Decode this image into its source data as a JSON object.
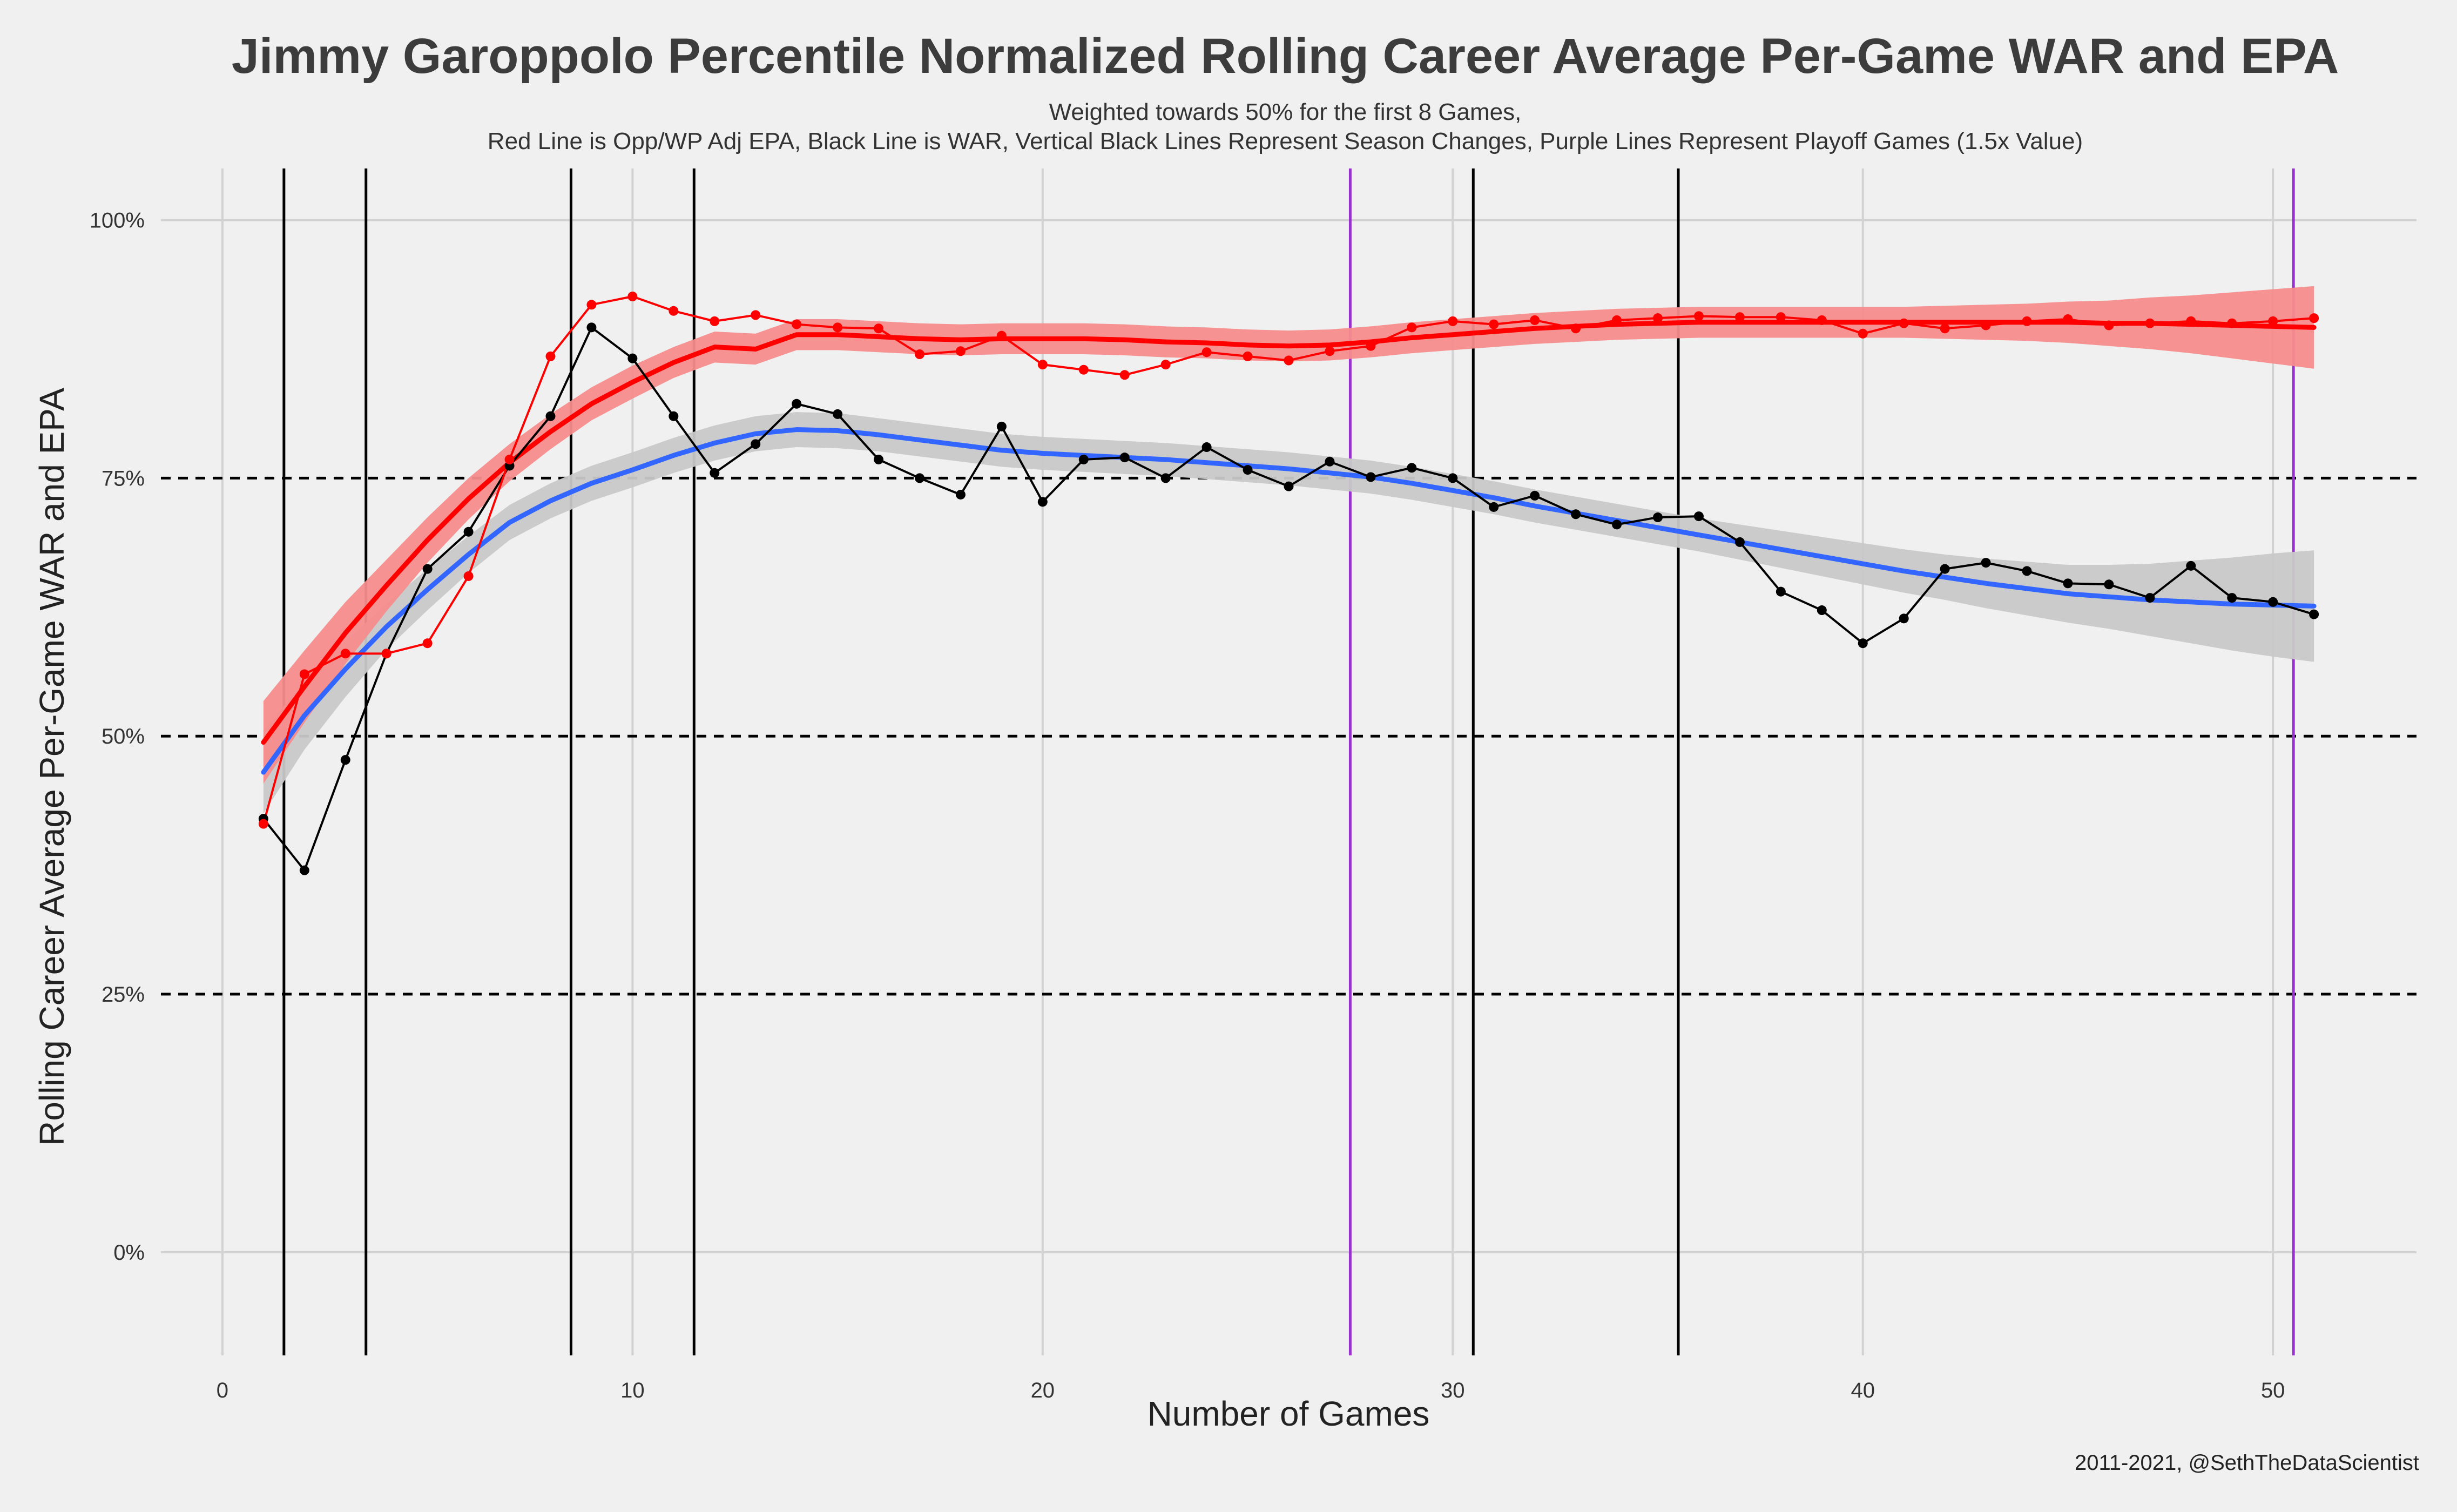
{
  "chart_data": {
    "type": "line",
    "title": "Jimmy Garoppolo Percentile Normalized Rolling Career Average Per-Game WAR and EPA",
    "subtitle_lines": [
      "Weighted towards 50% for the first 8 Games,",
      "Red Line is Opp/WP Adj EPA, Black Line is WAR, Vertical Black Lines Represent Season Changes, Purple Lines Represent Playoff Games (1.5x Value)"
    ],
    "xlabel": "Number of Games",
    "ylabel": "Rolling Career Average Per-Game WAR and EPA",
    "caption": "2011-2021, @SethTheDataScientist",
    "xlim": [
      -1.5,
      53.5
    ],
    "ylim": [
      -0.1,
      1.05
    ],
    "x_ticks": [
      0,
      10,
      20,
      30,
      40,
      50
    ],
    "x_tick_labels": [
      "0",
      "10",
      "20",
      "30",
      "40",
      "50"
    ],
    "y_ticks": [
      0,
      0.25,
      0.5,
      0.75,
      1.0
    ],
    "y_tick_labels": [
      "0%",
      "25%",
      "50%",
      "75%",
      "100%"
    ],
    "dashed_hlines": [
      0.25,
      0.5,
      0.75
    ],
    "season_change_lines": [
      1.5,
      3.5,
      8.5,
      11.5,
      30.5,
      35.5
    ],
    "playoff_lines": [
      27.5,
      50.5
    ],
    "grid": true,
    "legend": "none",
    "colors": {
      "background": "#f0f0f0",
      "grid": "#d2d2d2",
      "epa_line": "#ff0000",
      "epa_band": "#f58c8c",
      "war_line": "#000000",
      "war_smooth": "#3366ff",
      "war_band": "#c8c8c8",
      "season_line": "#000000",
      "playoff_line": "#9932cc"
    },
    "series": [
      {
        "key": "epa",
        "x": [
          1,
          2,
          3,
          4,
          5,
          6,
          7,
          8,
          9,
          10,
          11,
          12,
          13,
          14,
          15,
          16,
          17,
          18,
          19,
          20,
          21,
          22,
          23,
          24,
          25,
          26,
          27,
          28,
          29,
          30,
          31,
          32,
          33,
          34,
          35,
          36,
          37,
          38,
          39,
          40,
          41,
          42,
          43,
          44,
          45,
          46,
          47,
          48,
          49,
          50,
          51
        ],
        "y": [
          0.415,
          0.56,
          0.58,
          0.58,
          0.59,
          0.655,
          0.768,
          0.868,
          0.918,
          0.926,
          0.912,
          0.902,
          0.908,
          0.899,
          0.896,
          0.895,
          0.87,
          0.873,
          0.888,
          0.86,
          0.855,
          0.85,
          0.86,
          0.872,
          0.868,
          0.864,
          0.873,
          0.878,
          0.896,
          0.902,
          0.899,
          0.903,
          0.895,
          0.903,
          0.905,
          0.907,
          0.906,
          0.906,
          0.903,
          0.89,
          0.9,
          0.895,
          0.898,
          0.902,
          0.904,
          0.898,
          0.9,
          0.902,
          0.9,
          0.902,
          0.905
        ]
      },
      {
        "key": "war",
        "x": [
          1,
          2,
          3,
          4,
          5,
          6,
          7,
          8,
          9,
          10,
          11,
          12,
          13,
          14,
          15,
          16,
          17,
          18,
          19,
          20,
          21,
          22,
          23,
          24,
          25,
          26,
          27,
          28,
          29,
          30,
          31,
          32,
          33,
          34,
          35,
          36,
          37,
          38,
          39,
          40,
          41,
          42,
          43,
          44,
          45,
          46,
          47,
          48,
          49,
          50,
          51
        ],
        "y": [
          0.42,
          0.37,
          0.477,
          0.58,
          0.662,
          0.698,
          0.762,
          0.81,
          0.896,
          0.866,
          0.81,
          0.755,
          0.783,
          0.822,
          0.812,
          0.768,
          0.75,
          0.734,
          0.8,
          0.727,
          0.768,
          0.77,
          0.75,
          0.78,
          0.758,
          0.742,
          0.766,
          0.751,
          0.76,
          0.75,
          0.722,
          0.733,
          0.715,
          0.705,
          0.712,
          0.713,
          0.688,
          0.64,
          0.622,
          0.59,
          0.614,
          0.662,
          0.668,
          0.66,
          0.648,
          0.647,
          0.634,
          0.665,
          0.634,
          0.63,
          0.618
        ]
      },
      {
        "key": "epa_smooth",
        "x": [
          1,
          2,
          3,
          4,
          5,
          6,
          7,
          8,
          9,
          10,
          11,
          12,
          13,
          14,
          15,
          16,
          17,
          18,
          19,
          20,
          21,
          22,
          23,
          24,
          25,
          26,
          27,
          28,
          29,
          30,
          31,
          32,
          33,
          34,
          35,
          36,
          37,
          38,
          39,
          40,
          41,
          42,
          43,
          44,
          45,
          46,
          47,
          48,
          49,
          50,
          51
        ],
        "y": [
          0.494,
          0.548,
          0.6,
          0.646,
          0.69,
          0.73,
          0.765,
          0.795,
          0.822,
          0.843,
          0.862,
          0.877,
          0.875,
          0.889,
          0.889,
          0.887,
          0.885,
          0.884,
          0.885,
          0.885,
          0.885,
          0.884,
          0.882,
          0.881,
          0.879,
          0.878,
          0.879,
          0.882,
          0.886,
          0.889,
          0.892,
          0.895,
          0.897,
          0.899,
          0.9,
          0.901,
          0.901,
          0.901,
          0.901,
          0.901,
          0.901,
          0.901,
          0.901,
          0.901,
          0.901,
          0.9,
          0.9,
          0.899,
          0.898,
          0.897,
          0.896
        ],
        "se": [
          0.04,
          0.035,
          0.03,
          0.025,
          0.022,
          0.02,
          0.018,
          0.017,
          0.016,
          0.016,
          0.015,
          0.015,
          0.015,
          0.015,
          0.015,
          0.015,
          0.015,
          0.015,
          0.015,
          0.015,
          0.015,
          0.015,
          0.015,
          0.015,
          0.015,
          0.015,
          0.015,
          0.015,
          0.015,
          0.015,
          0.015,
          0.015,
          0.015,
          0.015,
          0.015,
          0.015,
          0.015,
          0.015,
          0.015,
          0.015,
          0.015,
          0.016,
          0.017,
          0.018,
          0.02,
          0.022,
          0.025,
          0.028,
          0.032,
          0.036,
          0.04
        ]
      },
      {
        "key": "war_smooth",
        "x": [
          1,
          2,
          3,
          4,
          5,
          6,
          7,
          8,
          9,
          10,
          11,
          12,
          13,
          14,
          15,
          16,
          17,
          18,
          19,
          20,
          21,
          22,
          23,
          24,
          25,
          26,
          27,
          28,
          29,
          30,
          31,
          32,
          33,
          34,
          35,
          36,
          37,
          38,
          39,
          40,
          41,
          42,
          43,
          44,
          45,
          46,
          47,
          48,
          49,
          50,
          51
        ],
        "y": [
          0.465,
          0.52,
          0.565,
          0.606,
          0.642,
          0.676,
          0.707,
          0.728,
          0.745,
          0.758,
          0.772,
          0.784,
          0.793,
          0.797,
          0.796,
          0.792,
          0.787,
          0.782,
          0.777,
          0.774,
          0.772,
          0.77,
          0.768,
          0.765,
          0.762,
          0.759,
          0.755,
          0.751,
          0.745,
          0.738,
          0.731,
          0.723,
          0.716,
          0.709,
          0.702,
          0.695,
          0.688,
          0.681,
          0.674,
          0.667,
          0.66,
          0.654,
          0.648,
          0.643,
          0.638,
          0.635,
          0.632,
          0.63,
          0.628,
          0.627,
          0.626
        ],
        "se": [
          0.04,
          0.033,
          0.027,
          0.022,
          0.02,
          0.018,
          0.017,
          0.017,
          0.017,
          0.017,
          0.017,
          0.017,
          0.017,
          0.017,
          0.017,
          0.016,
          0.016,
          0.016,
          0.016,
          0.016,
          0.016,
          0.016,
          0.016,
          0.016,
          0.016,
          0.016,
          0.016,
          0.016,
          0.016,
          0.016,
          0.016,
          0.016,
          0.016,
          0.016,
          0.016,
          0.016,
          0.017,
          0.018,
          0.019,
          0.02,
          0.021,
          0.022,
          0.024,
          0.026,
          0.028,
          0.031,
          0.035,
          0.04,
          0.045,
          0.05,
          0.054
        ]
      }
    ]
  }
}
